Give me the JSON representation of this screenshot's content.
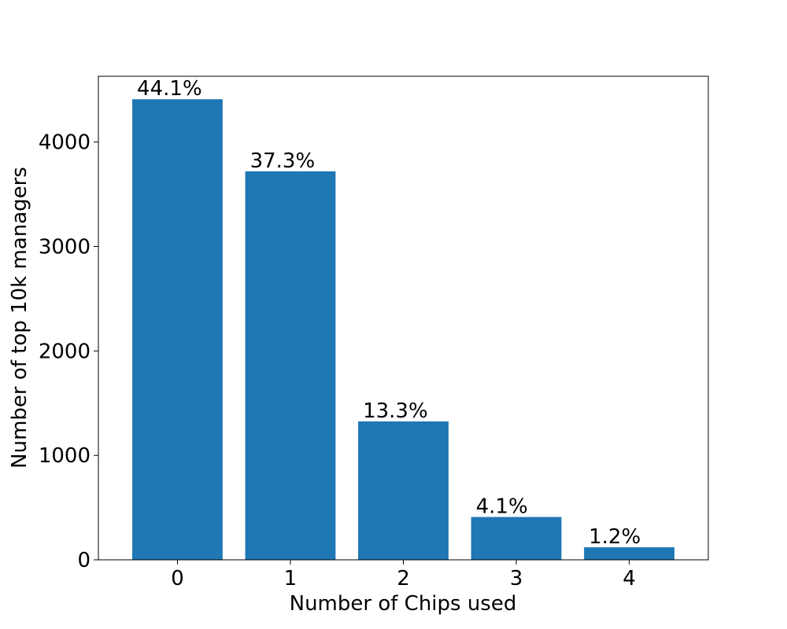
{
  "chart_data": {
    "type": "bar",
    "categories": [
      "0",
      "1",
      "2",
      "3",
      "4"
    ],
    "values": [
      4410,
      3720,
      1325,
      410,
      120
    ],
    "data_labels": [
      "44.1%",
      "37.3%",
      "13.3%",
      "4.1%",
      "1.2%"
    ],
    "title": "",
    "xlabel": "Number of Chips used",
    "ylabel": "Number of top 10k managers",
    "ylim": [
      0,
      4630
    ],
    "yticks": [
      0,
      1000,
      2000,
      3000,
      4000
    ],
    "ytick_labels": [
      "0",
      "1000",
      "2000",
      "3000",
      "4000"
    ],
    "grid": false,
    "legend": "none",
    "colors": {
      "bar": "#1f77b4",
      "axes": "#000000",
      "background": "#ffffff"
    }
  }
}
